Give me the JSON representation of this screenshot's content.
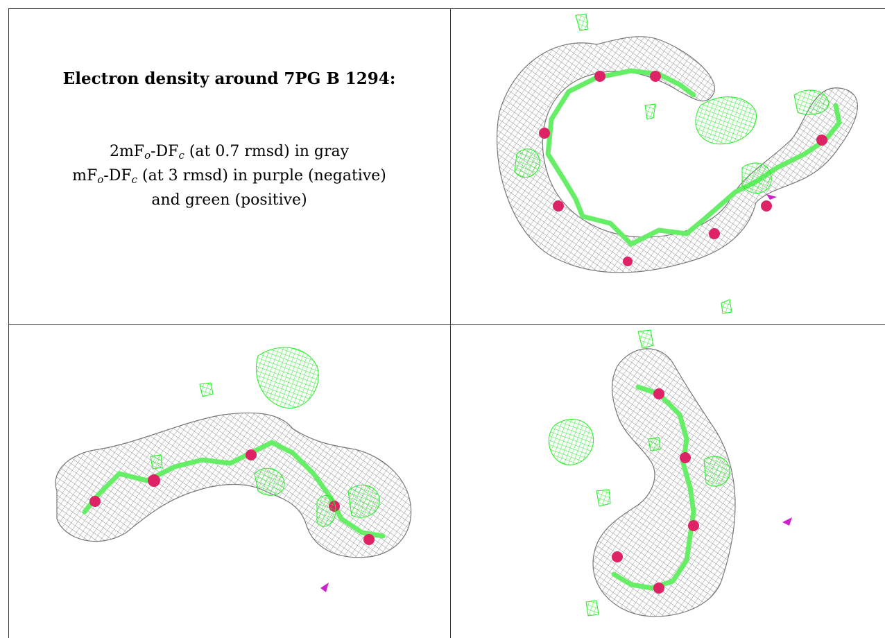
{
  "caption": {
    "title": "Electron density around 7PG B 1294:",
    "line1": {
      "prefix": "2mF",
      "sub1": "o",
      "mid": "-DF",
      "sub2": "c",
      "suffix": " (at 0.7 rmsd) in gray"
    },
    "line2": {
      "prefix": "mF",
      "sub1": "o",
      "mid": "-DF",
      "sub2": "c",
      "suffix": " (at 3 rmsd) in purple (negative)"
    },
    "line3": "and green (positive)"
  },
  "colors": {
    "map_2fofc": "#9a9a9a",
    "map_positive": "#22ee22",
    "map_negative": "#cc22cc",
    "carbon_bond": "#66ee66",
    "oxygen_atom": "#dd2266",
    "grid_line": "#333333"
  },
  "views": [
    {
      "name": "view-top-right",
      "shape": "ring"
    },
    {
      "name": "view-bottom-left",
      "shape": "zigzag"
    },
    {
      "name": "view-bottom-right",
      "shape": "hook"
    }
  ]
}
